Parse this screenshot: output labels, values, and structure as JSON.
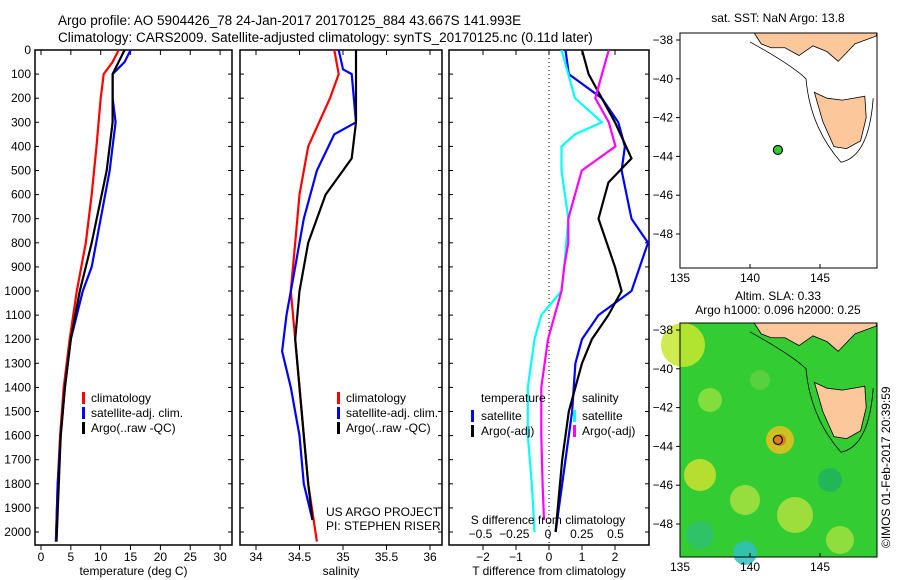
{
  "title_line1": "Argo profile: AO 5904426_78 24-Jan-2017 20170125_884 43.667S 141.993E",
  "title_line2": "Climatology: CARS2009. Satellite-adjusted climatology: synTS_20170125.nc (0.11d later)",
  "watermark": "©IMOS 01-Feb-2017 20:39:59",
  "project_line1": "US ARGO PROJECT",
  "project_line2": "PI: STEPHEN RISER",
  "colors": {
    "climatology": "#ff0000",
    "satellite": "#0000ff",
    "argo": "#000000",
    "sal_satellite": "#00ffff",
    "sal_argo": "#ff00ff",
    "land": "#fcc89b"
  },
  "chart_data": [
    {
      "type": "line",
      "xlabel": "temperature (deg C)",
      "ylabel": "",
      "xlim": [
        -1,
        31
      ],
      "ylim": [
        2080,
        0
      ],
      "xticks": [
        0,
        5,
        10,
        15,
        20,
        25,
        30
      ],
      "yticks": [
        0,
        100,
        200,
        300,
        400,
        500,
        600,
        700,
        800,
        900,
        1000,
        1100,
        1200,
        1300,
        1400,
        1500,
        1600,
        1700,
        1800,
        1900,
        2000
      ],
      "legend": [
        "climatology",
        "satellite-adj. clim.",
        "Argo(..raw -QC)"
      ],
      "series": [
        {
          "name": "climatology",
          "color": "#ff0000",
          "points": [
            [
              0,
              13
            ],
            [
              50,
              12
            ],
            [
              100,
              10.5
            ],
            [
              200,
              10
            ],
            [
              400,
              9.3
            ],
            [
              600,
              8.5
            ],
            [
              800,
              7.5
            ],
            [
              1000,
              6
            ],
            [
              1200,
              4.8
            ],
            [
              1400,
              3.8
            ],
            [
              1600,
              3.2
            ],
            [
              1800,
              2.8
            ],
            [
              2040,
              2.5
            ]
          ]
        },
        {
          "name": "satellite-adj. clim.",
          "color": "#0000ff",
          "points": [
            [
              0,
              15
            ],
            [
              50,
              14
            ],
            [
              100,
              12
            ],
            [
              200,
              12
            ],
            [
              300,
              12.5
            ],
            [
              400,
              12
            ],
            [
              500,
              11.5
            ],
            [
              700,
              10
            ],
            [
              900,
              8.5
            ],
            [
              1000,
              7
            ],
            [
              1200,
              5
            ],
            [
              1400,
              4
            ],
            [
              1600,
              3.3
            ],
            [
              1800,
              2.8
            ],
            [
              2040,
              2.5
            ]
          ]
        },
        {
          "name": "Argo(..raw -QC)",
          "color": "#000000",
          "points": [
            [
              0,
              14
            ],
            [
              50,
              13
            ],
            [
              100,
              12
            ],
            [
              300,
              12
            ],
            [
              500,
              11
            ],
            [
              800,
              8.5
            ],
            [
              900,
              7.5
            ],
            [
              1000,
              6.5
            ],
            [
              1200,
              5
            ],
            [
              1400,
              4
            ],
            [
              1600,
              3.3
            ],
            [
              2040,
              2.6
            ]
          ]
        }
      ]
    },
    {
      "type": "line",
      "xlabel": "salinity",
      "xlim": [
        33.82,
        36.1
      ],
      "ylim": [
        2080,
        0
      ],
      "xticks": [
        34,
        34.5,
        35,
        35.5,
        36
      ],
      "legend": [
        "climatology",
        "satellite-adj. clim.",
        "Argo(..raw -QC)"
      ],
      "series": [
        {
          "name": "climatology",
          "color": "#ff0000",
          "points": [
            [
              0,
              34.9
            ],
            [
              100,
              34.95
            ],
            [
              200,
              34.85
            ],
            [
              400,
              34.6
            ],
            [
              600,
              34.5
            ],
            [
              800,
              34.45
            ],
            [
              1000,
              34.4
            ],
            [
              1200,
              34.45
            ],
            [
              1400,
              34.5
            ],
            [
              1600,
              34.55
            ],
            [
              1800,
              34.6
            ],
            [
              2040,
              34.7
            ]
          ]
        },
        {
          "name": "satellite-adj. clim.",
          "color": "#0000ff",
          "points": [
            [
              0,
              34.95
            ],
            [
              80,
              35.0
            ],
            [
              100,
              35.1
            ],
            [
              300,
              35.15
            ],
            [
              350,
              34.9
            ],
            [
              500,
              34.7
            ],
            [
              700,
              34.55
            ],
            [
              900,
              34.45
            ],
            [
              1100,
              34.35
            ],
            [
              1250,
              34.3
            ],
            [
              1400,
              34.4
            ],
            [
              1600,
              34.5
            ],
            [
              1800,
              34.55
            ],
            [
              1950,
              34.65
            ]
          ]
        },
        {
          "name": "Argo(..raw -QC)",
          "color": "#000000",
          "points": [
            [
              0,
              35.15
            ],
            [
              300,
              35.15
            ],
            [
              450,
              35.1
            ],
            [
              500,
              35.0
            ],
            [
              600,
              34.8
            ],
            [
              800,
              34.6
            ],
            [
              1000,
              34.5
            ],
            [
              1200,
              34.45
            ],
            [
              1400,
              34.5
            ],
            [
              1600,
              34.55
            ],
            [
              1800,
              34.6
            ],
            [
              1950,
              34.65
            ]
          ]
        }
      ]
    },
    {
      "type": "line",
      "xlabel": "T difference from climatology",
      "x2label": "S difference from climatology",
      "xlim": [
        -3,
        3
      ],
      "x2lim": [
        -0.75,
        0.75
      ],
      "ylim": [
        2080,
        0
      ],
      "xticks": [
        -2,
        -1,
        0,
        1,
        2
      ],
      "x2ticks": [
        -0.5,
        -0.25,
        0,
        0.25,
        0.5
      ],
      "legend_temperature": {
        "title": "temperature",
        "items": [
          "satellite",
          "Argo(-adj)"
        ]
      },
      "legend_salinity": {
        "title": "salinity",
        "items": [
          "satellite",
          "Argo(-adj)"
        ]
      },
      "series": [
        {
          "name": "T satellite",
          "axis": "T",
          "color": "#0000ff",
          "points": [
            [
              0,
              0.5
            ],
            [
              100,
              0.6
            ],
            [
              200,
              1.6
            ],
            [
              300,
              2.1
            ],
            [
              400,
              2.3
            ],
            [
              500,
              2.2
            ],
            [
              700,
              2.5
            ],
            [
              800,
              3
            ],
            [
              1000,
              2.5
            ],
            [
              1100,
              1.5
            ],
            [
              1200,
              1
            ],
            [
              1300,
              0.8
            ],
            [
              1500,
              0.7
            ],
            [
              1700,
              0.5
            ],
            [
              1900,
              0.3
            ],
            [
              2000,
              0.2
            ]
          ]
        },
        {
          "name": "T Argo(-adj)",
          "axis": "T",
          "color": "#000000",
          "points": [
            [
              0,
              1
            ],
            [
              100,
              1.2
            ],
            [
              300,
              2
            ],
            [
              450,
              2.5
            ],
            [
              550,
              1.8
            ],
            [
              700,
              1.5
            ],
            [
              900,
              2
            ],
            [
              1000,
              2.2
            ],
            [
              1100,
              1.8
            ],
            [
              1200,
              1.3
            ],
            [
              1300,
              1
            ],
            [
              1500,
              0.6
            ],
            [
              1700,
              0.4
            ],
            [
              2000,
              0.2
            ]
          ]
        },
        {
          "name": "S satellite",
          "axis": "S",
          "color": "#00ffff",
          "points": [
            [
              0,
              0.1
            ],
            [
              100,
              0.15
            ],
            [
              200,
              0.2
            ],
            [
              300,
              0.4
            ],
            [
              350,
              0.2
            ],
            [
              400,
              0.1
            ],
            [
              500,
              0.1
            ],
            [
              700,
              0.15
            ],
            [
              900,
              0.12
            ],
            [
              1000,
              0.1
            ],
            [
              1100,
              -0.05
            ],
            [
              1200,
              -0.1
            ],
            [
              1400,
              -0.15
            ],
            [
              1600,
              -0.15
            ],
            [
              1800,
              -0.12
            ],
            [
              2000,
              -0.1
            ]
          ]
        },
        {
          "name": "S Argo(-adj)",
          "axis": "S",
          "color": "#ff00ff",
          "points": [
            [
              0,
              0.45
            ],
            [
              100,
              0.4
            ],
            [
              200,
              0.35
            ],
            [
              300,
              0.45
            ],
            [
              400,
              0.5
            ],
            [
              500,
              0.25
            ],
            [
              600,
              0.2
            ],
            [
              700,
              0.15
            ],
            [
              800,
              0.15
            ],
            [
              900,
              0.12
            ],
            [
              1000,
              0.1
            ],
            [
              1200,
              0
            ],
            [
              1400,
              -0.05
            ],
            [
              1600,
              -0.05
            ],
            [
              1800,
              -0.04
            ],
            [
              1950,
              -0.03
            ]
          ]
        }
      ]
    }
  ],
  "map_sst": {
    "title": "sat. SST: NaN Argo: 13.8",
    "xticks": [
      135,
      140,
      145
    ],
    "yticks": [
      -38,
      -40,
      -42,
      -44,
      -46,
      -48
    ],
    "argo_lon": 141.993,
    "argo_lat": -43.667
  },
  "map_sla": {
    "title1": "Altim. SLA: 0.33",
    "title2": "Argo h1000: 0.096 h2000: 0.25",
    "xticks": [
      135,
      140,
      145
    ],
    "yticks": [
      -38,
      -40,
      -42,
      -44,
      -46,
      -48
    ],
    "argo_lon": 141.993,
    "argo_lat": -43.667
  }
}
